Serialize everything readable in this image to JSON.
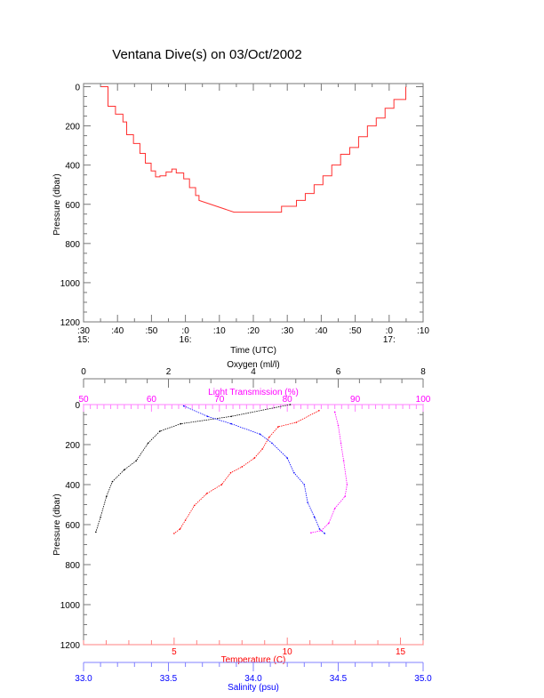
{
  "title": "Ventana Dive(s) on 03/Oct/2002",
  "chart_data": [
    {
      "type": "line",
      "name": "time-pressure",
      "xlabel": "Time (UTC)",
      "ylabel": "Pressure (dbar)",
      "x_units": "minutes after 15:30 UTC",
      "xlim": [
        0,
        100
      ],
      "ylim": [
        1200,
        0
      ],
      "x_ticks": [
        {
          "v": 0,
          "label": ":30",
          "hour": "15:"
        },
        {
          "v": 10,
          "label": ":40"
        },
        {
          "v": 20,
          "label": ":50"
        },
        {
          "v": 30,
          "label": ":0",
          "hour": "16:"
        },
        {
          "v": 40,
          "label": ":10"
        },
        {
          "v": 50,
          "label": ":20"
        },
        {
          "v": 60,
          "label": ":30"
        },
        {
          "v": 70,
          "label": ":40"
        },
        {
          "v": 80,
          "label": ":50"
        },
        {
          "v": 90,
          "label": ":0",
          "hour": "17:"
        },
        {
          "v": 100,
          "label": ":10"
        }
      ],
      "y_ticks": [
        "0",
        "200",
        "400",
        "600",
        "800",
        "1000",
        "1200"
      ],
      "color": "#ff3030",
      "x": [
        5.1,
        7.2,
        9.4,
        11.6,
        12.7,
        14.7,
        16.6,
        18.2,
        19.9,
        21.2,
        22.5,
        24.3,
        26.0,
        27.3,
        29.5,
        31.2,
        33.0,
        34.0,
        44.3,
        54.8,
        58.3,
        62.7,
        65.3,
        67.9,
        70.5,
        73.1,
        75.7,
        78.4,
        81.0,
        83.6,
        86.2,
        88.8,
        91.4,
        94.9
      ],
      "y": [
        0,
        100,
        140,
        180,
        245,
        290,
        340,
        390,
        430,
        460,
        455,
        435,
        420,
        440,
        470,
        515,
        555,
        580,
        640,
        640,
        610,
        580,
        545,
        500,
        455,
        400,
        345,
        310,
        255,
        200,
        160,
        110,
        65,
        0
      ]
    },
    {
      "type": "scatter",
      "name": "profiles",
      "ylabel": "Pressure (dbar)",
      "ylim": [
        1200,
        0
      ],
      "y_ticks": [
        "0",
        "200",
        "400",
        "600",
        "800",
        "1000",
        "1200"
      ],
      "axes": {
        "oxygen": {
          "label": "Oxygen (ml/l)",
          "range": [
            0,
            8
          ],
          "ticks": [
            "0",
            "2",
            "4",
            "6",
            "8"
          ],
          "minor": 0.5,
          "color": "#000000"
        },
        "light": {
          "label": "Light Transmission (%)",
          "range": [
            50,
            100
          ],
          "ticks": [
            "50",
            "60",
            "70",
            "80",
            "90",
            "100"
          ],
          "minor": 1,
          "color": "#ff00ff"
        },
        "temperature": {
          "label": "Temperature (C)",
          "range": [
            1,
            16
          ],
          "ticks": [
            "5",
            "10",
            "15"
          ],
          "minor": 1,
          "color": "#ff0000"
        },
        "salinity": {
          "label": "Salinity (psu)",
          "range": [
            33.0,
            35.0
          ],
          "ticks": [
            "33.0",
            "33.5",
            "34.0",
            "34.5",
            "35.0"
          ],
          "minor": 0.1,
          "color": "#0000ff"
        }
      },
      "series": [
        {
          "name": "Oxygen",
          "axis": "oxygen",
          "x": [
            4.87,
            3.48,
            2.29,
            1.8,
            1.52,
            1.24,
            0.96,
            0.68,
            0.54,
            0.4,
            0.29
          ],
          "y": [
            0,
            59,
            96,
            133,
            193,
            281,
            326,
            385,
            459,
            563,
            637
          ]
        },
        {
          "name": "Temperature",
          "axis": "temperature",
          "x": [
            11.4,
            10.4,
            9.6,
            9.2,
            8.9,
            8.55,
            8.0,
            7.5,
            7.1,
            6.45,
            5.9,
            5.5,
            5.26,
            5.0
          ],
          "y": [
            30,
            89,
            111,
            163,
            222,
            267,
            311,
            341,
            400,
            444,
            504,
            578,
            622,
            644
          ]
        },
        {
          "name": "Salinity",
          "axis": "salinity",
          "x": [
            33.59,
            33.73,
            33.87,
            34.04,
            34.11,
            34.2,
            34.24,
            34.3,
            34.32,
            34.36,
            34.39,
            34.42
          ],
          "y": [
            7,
            59,
            96,
            148,
            193,
            267,
            341,
            400,
            489,
            563,
            622,
            644
          ]
        },
        {
          "name": "Light Transmission",
          "axis": "light",
          "x": [
            87.0,
            87.5,
            87.9,
            88.3,
            88.8,
            88.5,
            87.0,
            86.1,
            85.0,
            83.5
          ],
          "y": [
            37,
            104,
            193,
            281,
            400,
            459,
            519,
            593,
            630,
            641
          ]
        }
      ]
    }
  ]
}
